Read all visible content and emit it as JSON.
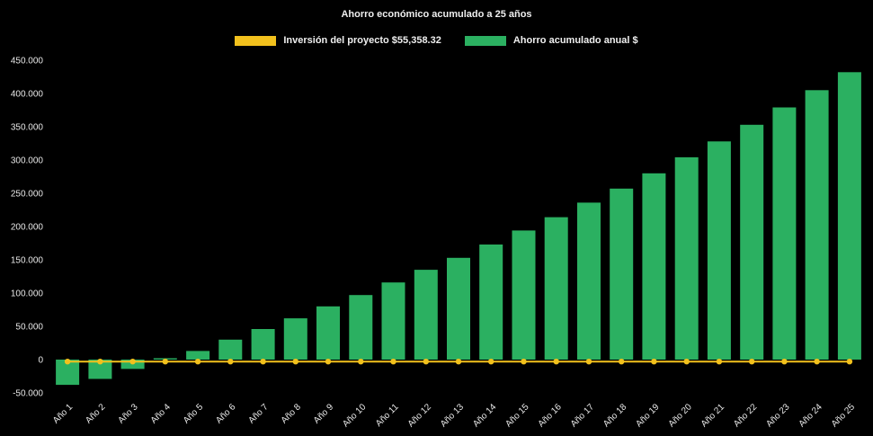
{
  "title": "Ahorro económico acumulado a 25 años",
  "legend": {
    "investment_label": "Inversión del proyecto $55,358.32",
    "savings_label": "Ahorro acumulado anual $"
  },
  "colors": {
    "background": "#000000",
    "bar": "#2bb061",
    "line": "#f2c11d",
    "text": "#e8e8e8"
  },
  "chart_data": {
    "type": "bar",
    "title": "Ahorro económico acumulado a 25 años",
    "categories": [
      "Año 1",
      "Año 2",
      "Año 3",
      "Año 4",
      "Año 5",
      "Año 6",
      "Año 7",
      "Año 8",
      "Año 9",
      "Año 10",
      "Año 11",
      "Año 12",
      "Año 13",
      "Año 14",
      "Año 15",
      "Año 16",
      "Año 17",
      "Año 18",
      "Año 19",
      "Año 20",
      "Año 21",
      "Año 22",
      "Año 23",
      "Año 24",
      "Año 25"
    ],
    "series": [
      {
        "name": "Ahorro acumulado anual $",
        "type": "bar",
        "color": "#2bb061",
        "values": [
          -38000,
          -29000,
          -14000,
          2000,
          13000,
          30000,
          46000,
          62000,
          80000,
          97000,
          116000,
          135000,
          153000,
          173000,
          194000,
          214000,
          236000,
          257000,
          280000,
          304000,
          328000,
          353000,
          379000,
          405000,
          432000
        ]
      },
      {
        "name": "Inversión del proyecto $55,358.32",
        "type": "line",
        "color": "#f2c11d",
        "values": [
          -3000,
          -3000,
          -3000,
          -3000,
          -3000,
          -3000,
          -3000,
          -3000,
          -3000,
          -3000,
          -3000,
          -3000,
          -3000,
          -3000,
          -3000,
          -3000,
          -3000,
          -3000,
          -3000,
          -3000,
          -3000,
          -3000,
          -3000,
          -3000,
          -3000
        ]
      }
    ],
    "xlabel": "",
    "ylabel": "",
    "ylim": [
      -50000,
      450000
    ],
    "ytick_step": 50000,
    "grid": false,
    "legend_position": "top"
  }
}
